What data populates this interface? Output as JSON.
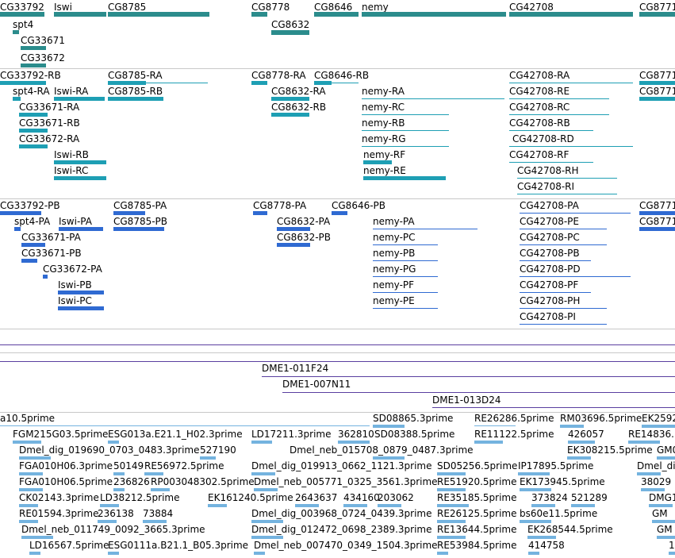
{
  "colors": {
    "gene": "#2b8c8c",
    "transcript": "#1e9fb4",
    "cds": "#2f6ad2",
    "bac": "#5a3fa0",
    "est": "#74b3df"
  },
  "gene_track": {
    "labels": [
      "CG33792",
      "Iswi",
      "CG8785",
      "CG8778",
      "CG8646",
      "nemy",
      "CG42708",
      "CG8771",
      "spt4",
      "CG8632",
      "CG33671",
      "CG33672"
    ]
  },
  "transcript_track": {
    "labels": [
      "CG33792-RB",
      "spt4-RA",
      "Iswi-RA",
      "CG8785-RA",
      "CG8785-RB",
      "CG8778-RA",
      "CG8646-RB",
      "CG8632-RA",
      "CG8632-RB",
      "CG33671-RA",
      "CG33671-RB",
      "CG33672-RA",
      "Iswi-RB",
      "Iswi-RC",
      "nemy-RA",
      "nemy-RC",
      "nemy-RB",
      "nemy-RG",
      "nemy-RF",
      "nemy-RE",
      "CG42708-RA",
      "CG42708-RE",
      "CG42708-RC",
      "CG42708-RB",
      "CG42708-RD",
      "CG42708-RF",
      "CG42708-RH",
      "CG42708-RI",
      "CG8771",
      "CG8771"
    ]
  },
  "protein_track": {
    "labels": [
      "CG33792-PB",
      "spt4-PA",
      "Iswi-PA",
      "CG8785-PA",
      "CG8785-PB",
      "CG8778-PA",
      "CG8646-PB",
      "CG8632-PA",
      "CG8632-PB",
      "CG33671-PA",
      "CG33671-PB",
      "CG33672-PA",
      "Iswi-PB",
      "Iswi-PC",
      "nemy-PA",
      "nemy-PC",
      "nemy-PB",
      "nemy-PG",
      "nemy-PF",
      "nemy-PE",
      "CG42708-PA",
      "CG42708-PE",
      "CG42708-PC",
      "CG42708-PB",
      "CG42708-PD",
      "CG42708-PF",
      "CG42708-PH",
      "CG42708-PI",
      "CG8771",
      "CG8771"
    ]
  },
  "bac_track": {
    "labels": [
      "DME1-011F24",
      "DME1-007N11",
      "DME1-013D24"
    ]
  },
  "est_track": {
    "labels": [
      "a10.5prime",
      "SD08865.3prime",
      "RE26286.5prime",
      "RM03696.5prime",
      "EK2592",
      "FGM215G03.5prime",
      "ESG013a.E21.1_H02.3prime",
      "LD17211.3prime",
      "362810",
      "SD08388.5prime",
      "RE11122.5prime",
      "426057",
      "RE14836.",
      "Dmel_dig_019690_0703_0483.3prime",
      "527190",
      "Dmel_neb_015708_0879_0487.3prime",
      "EK308215.5prime",
      "GM0",
      "FGA010H06.3prime",
      "50149",
      "RE56972.5prime",
      "Dmel_dig_019913_0662_1121.3prime",
      "SD05256.5prime",
      "IP17895.5prime",
      "Dmel_di",
      "FGA010H06.5prime",
      "236826",
      "RP003048302.5prime",
      "Dmel_neb_005771_0325_3561.3prime",
      "RE51920.5prime",
      "EK173945.5prime",
      "38029",
      "CK02143.3prime",
      "LD38212.5prime",
      "EK161240.5prime",
      "2643637",
      "434160",
      "203062",
      "RE35185.5prime",
      "373824",
      "521289",
      "DMG1",
      "RE01594.3prime",
      "236138",
      "73884",
      "Dmel_dig_003968_0724_0439.3prime",
      "RE26125.5prime",
      "bs60e11.5prime",
      "GM",
      "Dmel_neb_011749_0092_3665.3prime",
      "Dmel_dig_012472_0698_2389.3prime",
      "RE13644.5prime",
      "EK268544.5prime",
      "GM",
      "LD16567.5prime",
      "ESG0111a.B21.1_B05.3prime",
      "Dmel_neb_007470_0349_1504.3prime",
      "RE53984.5prime",
      "414758",
      "1"
    ]
  }
}
